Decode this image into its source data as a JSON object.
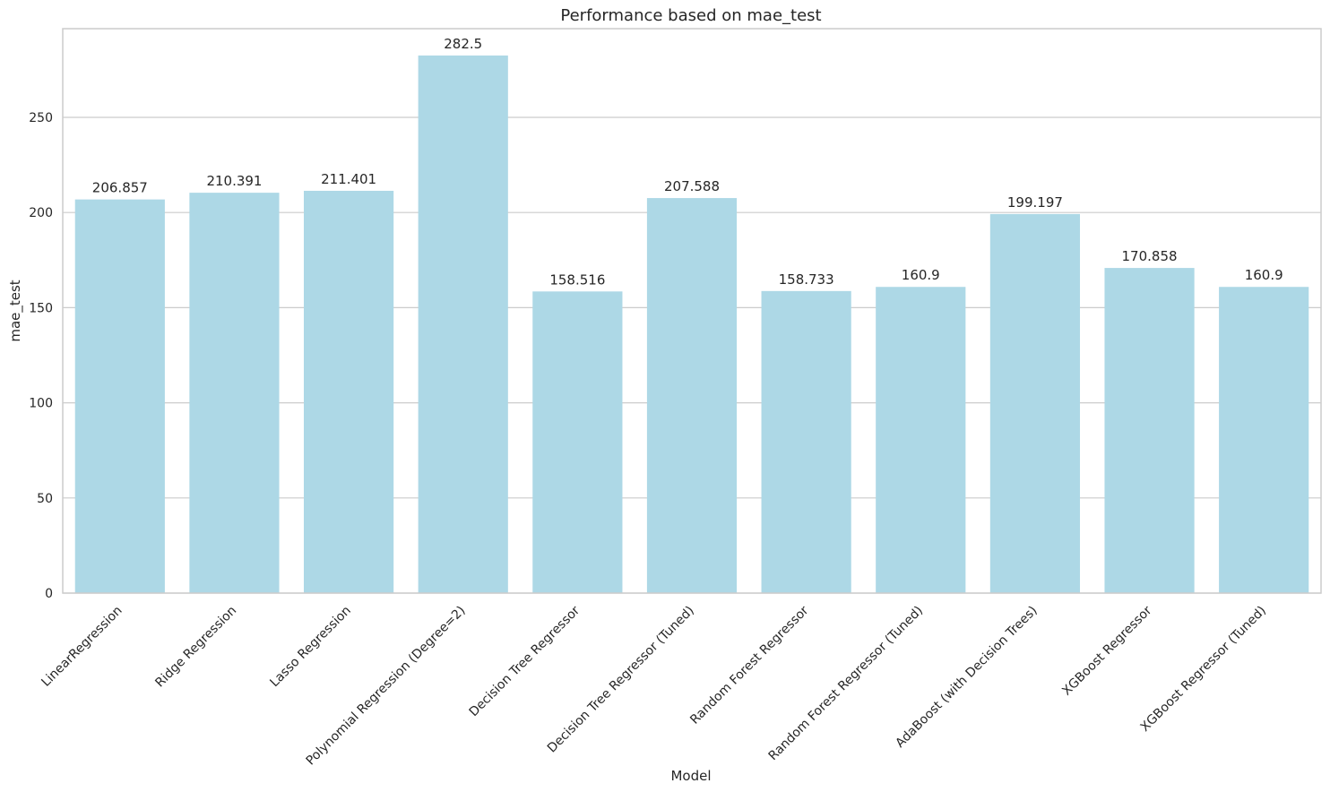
{
  "chart_data": {
    "type": "bar",
    "title": "Performance based on mae_test",
    "xlabel": "Model",
    "ylabel": "mae_test",
    "categories": [
      "LinearRegression",
      "Ridge Regression",
      "Lasso Regression",
      "Polynomial Regression (Degree=2)",
      "Decision Tree Regressor",
      "Decision Tree Regressor (Tuned)",
      "Random Forest Regressor",
      "Random Forest Regressor (Tuned)",
      "AdaBoost (with Decision Trees)",
      "XGBoost Regressor",
      "XGBoost Regressor (Tuned)"
    ],
    "values": [
      206.857,
      210.391,
      211.401,
      282.5,
      158.516,
      207.588,
      158.733,
      160.9,
      199.197,
      170.858,
      160.9
    ],
    "data_labels": [
      "206.857",
      "210.391",
      "211.401",
      "282.5",
      "158.516",
      "207.588",
      "158.733",
      "160.9",
      "199.197",
      "170.858",
      "160.9"
    ],
    "y_ticks": [
      0,
      50,
      100,
      150,
      200,
      250
    ],
    "ylim": [
      0,
      296.6
    ],
    "grid": true,
    "bar_color": "#add8e6"
  }
}
